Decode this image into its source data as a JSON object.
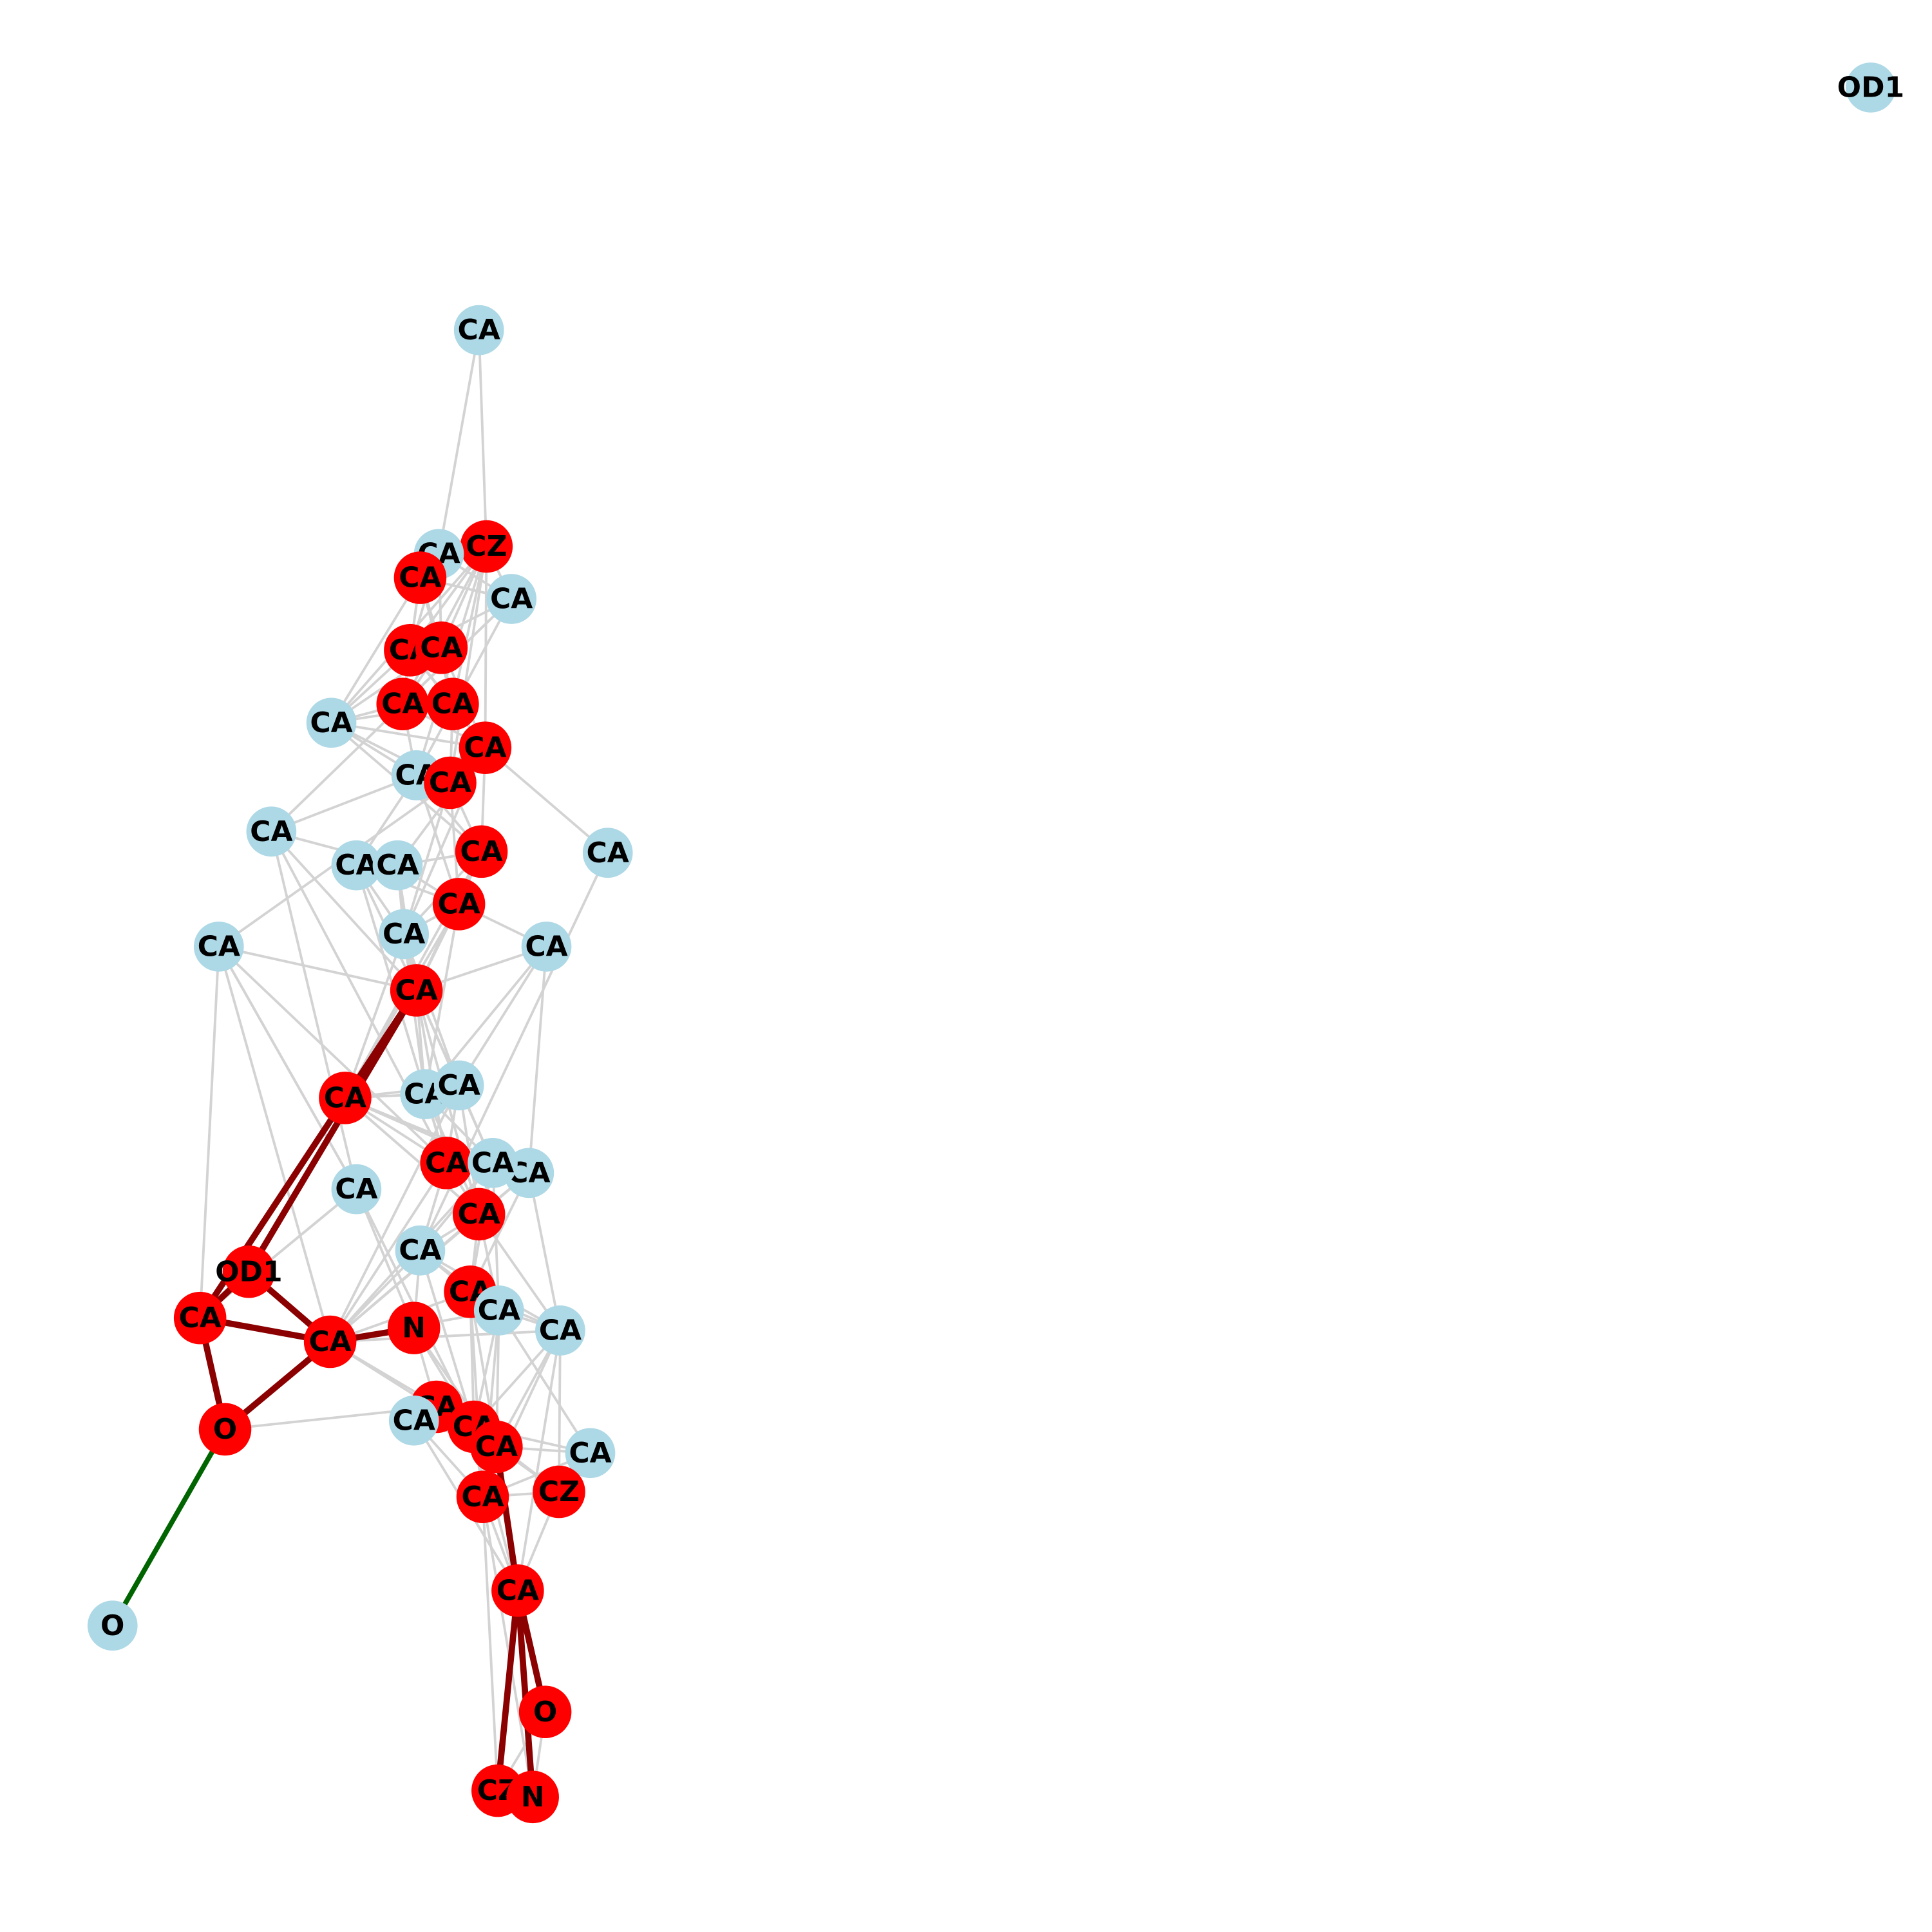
{
  "colors": {
    "background": "#ffffff",
    "node_default": "#add8e6",
    "node_highlight": "#ff0000",
    "edge_default": "#d3d3d3",
    "edge_highlight": "#8b0000",
    "edge_bridge": "#006400",
    "label": "#000000"
  },
  "nodes": [
    {
      "id": "n1",
      "label": "OD1",
      "highlight": false
    },
    {
      "id": "n2",
      "label": "CA",
      "highlight": false
    },
    {
      "id": "n3",
      "label": "CZ",
      "highlight": true
    },
    {
      "id": "n4",
      "label": "CA",
      "highlight": false
    },
    {
      "id": "n5",
      "label": "CA",
      "highlight": true
    },
    {
      "id": "n6",
      "label": "CA",
      "highlight": false
    },
    {
      "id": "n7",
      "label": "CA",
      "highlight": true
    },
    {
      "id": "n8",
      "label": "CA",
      "highlight": true
    },
    {
      "id": "n9",
      "label": "CA",
      "highlight": true
    },
    {
      "id": "n10",
      "label": "CA",
      "highlight": true
    },
    {
      "id": "n11",
      "label": "CA",
      "highlight": false
    },
    {
      "id": "n12",
      "label": "CA",
      "highlight": true
    },
    {
      "id": "n13",
      "label": "CA",
      "highlight": false
    },
    {
      "id": "n14",
      "label": "CA",
      "highlight": true
    },
    {
      "id": "n15",
      "label": "CA",
      "highlight": false
    },
    {
      "id": "n16",
      "label": "CA",
      "highlight": true
    },
    {
      "id": "n17",
      "label": "CA",
      "highlight": false
    },
    {
      "id": "n18",
      "label": "CA",
      "highlight": false
    },
    {
      "id": "n19",
      "label": "CA",
      "highlight": false
    },
    {
      "id": "n20",
      "label": "CA",
      "highlight": true
    },
    {
      "id": "n21",
      "label": "CA",
      "highlight": false
    },
    {
      "id": "n22",
      "label": "CA",
      "highlight": false
    },
    {
      "id": "n23",
      "label": "CA",
      "highlight": false
    },
    {
      "id": "n24",
      "label": "CA",
      "highlight": true
    },
    {
      "id": "n25",
      "label": "CA",
      "highlight": true
    },
    {
      "id": "n26",
      "label": "CA",
      "highlight": false
    },
    {
      "id": "n27",
      "label": "CA",
      "highlight": false
    },
    {
      "id": "n28",
      "label": "CA",
      "highlight": false
    },
    {
      "id": "n29",
      "label": "CA",
      "highlight": true
    },
    {
      "id": "n30",
      "label": "CA",
      "highlight": false
    },
    {
      "id": "n31",
      "label": "CA",
      "highlight": true
    },
    {
      "id": "n32",
      "label": "CA",
      "highlight": false
    },
    {
      "id": "n33",
      "label": "CA",
      "highlight": false
    },
    {
      "id": "n34",
      "label": "OD1",
      "highlight": true
    },
    {
      "id": "n35",
      "label": "CA",
      "highlight": true
    },
    {
      "id": "n36",
      "label": "CA",
      "highlight": true
    },
    {
      "id": "n37",
      "label": "CA",
      "highlight": true
    },
    {
      "id": "n38",
      "label": "CA",
      "highlight": false
    },
    {
      "id": "n39",
      "label": "N",
      "highlight": true
    },
    {
      "id": "n40",
      "label": "CA",
      "highlight": false
    },
    {
      "id": "n41",
      "label": "CA",
      "highlight": true
    },
    {
      "id": "n42",
      "label": "O",
      "highlight": true
    },
    {
      "id": "n43",
      "label": "CA",
      "highlight": false
    },
    {
      "id": "n44",
      "label": "CA",
      "highlight": true
    },
    {
      "id": "n45",
      "label": "CA",
      "highlight": true
    },
    {
      "id": "n46",
      "label": "CA",
      "highlight": false
    },
    {
      "id": "n47",
      "label": "CA",
      "highlight": true
    },
    {
      "id": "n48",
      "label": "CZ",
      "highlight": true
    },
    {
      "id": "n49",
      "label": "O",
      "highlight": false
    },
    {
      "id": "n50",
      "label": "CA",
      "highlight": true
    },
    {
      "id": "n51",
      "label": "O",
      "highlight": true
    },
    {
      "id": "n52",
      "label": "CZ",
      "highlight": true
    },
    {
      "id": "n53",
      "label": "N",
      "highlight": true
    }
  ],
  "edges": [
    [
      "n2",
      "n3"
    ],
    [
      "n2",
      "n4"
    ],
    [
      "n4",
      "n6"
    ],
    [
      "n4",
      "n7"
    ],
    [
      "n4",
      "n8"
    ],
    [
      "n3",
      "n5"
    ],
    [
      "n3",
      "n7"
    ],
    [
      "n3",
      "n8"
    ],
    [
      "n3",
      "n9"
    ],
    [
      "n3",
      "n10"
    ],
    [
      "n3",
      "n11"
    ],
    [
      "n3",
      "n12"
    ],
    [
      "n3",
      "n13"
    ],
    [
      "n3",
      "n6"
    ],
    [
      "n3",
      "n14"
    ],
    [
      "n5",
      "n7"
    ],
    [
      "n5",
      "n8"
    ],
    [
      "n5",
      "n9"
    ],
    [
      "n5",
      "n10"
    ],
    [
      "n5",
      "n11"
    ],
    [
      "n5",
      "n6"
    ],
    [
      "n6",
      "n9"
    ],
    [
      "n6",
      "n7"
    ],
    [
      "n6",
      "n17"
    ],
    [
      "n6",
      "n13"
    ],
    [
      "n7",
      "n8"
    ],
    [
      "n7",
      "n9"
    ],
    [
      "n7",
      "n10"
    ],
    [
      "n7",
      "n11"
    ],
    [
      "n7",
      "n12"
    ],
    [
      "n8",
      "n9"
    ],
    [
      "n8",
      "n10"
    ],
    [
      "n8",
      "n12"
    ],
    [
      "n8",
      "n11"
    ],
    [
      "n9",
      "n10"
    ],
    [
      "n9",
      "n11"
    ],
    [
      "n9",
      "n12"
    ],
    [
      "n9",
      "n13"
    ],
    [
      "n10",
      "n11"
    ],
    [
      "n10",
      "n12"
    ],
    [
      "n10",
      "n14"
    ],
    [
      "n11",
      "n12"
    ],
    [
      "n11",
      "n13"
    ],
    [
      "n11",
      "n16"
    ],
    [
      "n11",
      "n14"
    ],
    [
      "n12",
      "n15"
    ],
    [
      "n12",
      "n19"
    ],
    [
      "n12",
      "n13"
    ],
    [
      "n12",
      "n14"
    ],
    [
      "n12",
      "n16"
    ],
    [
      "n12",
      "n22"
    ],
    [
      "n13",
      "n14"
    ],
    [
      "n13",
      "n17"
    ],
    [
      "n13",
      "n18"
    ],
    [
      "n13",
      "n20"
    ],
    [
      "n13",
      "n16"
    ],
    [
      "n14",
      "n16"
    ],
    [
      "n14",
      "n20"
    ],
    [
      "n14",
      "n22"
    ],
    [
      "n14",
      "n21"
    ],
    [
      "n15",
      "n33"
    ],
    [
      "n16",
      "n19"
    ],
    [
      "n16",
      "n22"
    ],
    [
      "n16",
      "n25"
    ],
    [
      "n16",
      "n24"
    ],
    [
      "n16",
      "n20"
    ],
    [
      "n17",
      "n19"
    ],
    [
      "n17",
      "n24"
    ],
    [
      "n17",
      "n29"
    ],
    [
      "n17",
      "n32"
    ],
    [
      "n18",
      "n20"
    ],
    [
      "n18",
      "n22"
    ],
    [
      "n18",
      "n24"
    ],
    [
      "n18",
      "n29"
    ],
    [
      "n19",
      "n20"
    ],
    [
      "n19",
      "n22"
    ],
    [
      "n19",
      "n24"
    ],
    [
      "n20",
      "n22"
    ],
    [
      "n20",
      "n23"
    ],
    [
      "n20",
      "n24"
    ],
    [
      "n20",
      "n26"
    ],
    [
      "n20",
      "n25"
    ],
    [
      "n21",
      "n24"
    ],
    [
      "n21",
      "n29"
    ],
    [
      "n21",
      "n32"
    ],
    [
      "n21",
      "n36"
    ],
    [
      "n22",
      "n24"
    ],
    [
      "n22",
      "n26"
    ],
    [
      "n22",
      "n27"
    ],
    [
      "n22",
      "n25"
    ],
    [
      "n23",
      "n24"
    ],
    [
      "n23",
      "n26"
    ],
    [
      "n23",
      "n27"
    ],
    [
      "n23",
      "n28"
    ],
    [
      "n24",
      "n26"
    ],
    [
      "n24",
      "n27"
    ],
    [
      "n24",
      "n31"
    ],
    [
      "n24",
      "n29"
    ],
    [
      "n24",
      "n30"
    ],
    [
      "n25",
      "n26"
    ],
    [
      "n25",
      "n27"
    ],
    [
      "n25",
      "n28"
    ],
    [
      "n25",
      "n29"
    ],
    [
      "n25",
      "n30"
    ],
    [
      "n25",
      "n31"
    ],
    [
      "n26",
      "n27"
    ],
    [
      "n26",
      "n29"
    ],
    [
      "n26",
      "n30"
    ],
    [
      "n26",
      "n31"
    ],
    [
      "n27",
      "n29"
    ],
    [
      "n27",
      "n30"
    ],
    [
      "n27",
      "n31"
    ],
    [
      "n27",
      "n36"
    ],
    [
      "n28",
      "n31"
    ],
    [
      "n28",
      "n36"
    ],
    [
      "n28",
      "n37"
    ],
    [
      "n28",
      "n40"
    ],
    [
      "n29",
      "n30"
    ],
    [
      "n29",
      "n31"
    ],
    [
      "n29",
      "n33"
    ],
    [
      "n29",
      "n36"
    ],
    [
      "n30",
      "n31"
    ],
    [
      "n30",
      "n33"
    ],
    [
      "n30",
      "n36"
    ],
    [
      "n30",
      "n37"
    ],
    [
      "n30",
      "n38"
    ],
    [
      "n31",
      "n33"
    ],
    [
      "n31",
      "n36"
    ],
    [
      "n31",
      "n37"
    ],
    [
      "n31",
      "n38"
    ],
    [
      "n31",
      "n40"
    ],
    [
      "n32",
      "n35"
    ],
    [
      "n32",
      "n44"
    ],
    [
      "n32",
      "n39"
    ],
    [
      "n33",
      "n36"
    ],
    [
      "n33",
      "n37"
    ],
    [
      "n33",
      "n38"
    ],
    [
      "n33",
      "n39"
    ],
    [
      "n33",
      "n44"
    ],
    [
      "n33",
      "n40"
    ],
    [
      "n36",
      "n37"
    ],
    [
      "n36",
      "n38"
    ],
    [
      "n36",
      "n40"
    ],
    [
      "n36",
      "n44"
    ],
    [
      "n36",
      "n45"
    ],
    [
      "n37",
      "n38"
    ],
    [
      "n37",
      "n40"
    ],
    [
      "n37",
      "n44"
    ],
    [
      "n37",
      "n45"
    ],
    [
      "n37",
      "n47"
    ],
    [
      "n38",
      "n40"
    ],
    [
      "n38",
      "n44"
    ],
    [
      "n38",
      "n45"
    ],
    [
      "n38",
      "n47"
    ],
    [
      "n38",
      "n46"
    ],
    [
      "n39",
      "n41"
    ],
    [
      "n39",
      "n45"
    ],
    [
      "n39",
      "n44"
    ],
    [
      "n40",
      "n44"
    ],
    [
      "n40",
      "n45"
    ],
    [
      "n40",
      "n47"
    ],
    [
      "n40",
      "n48"
    ],
    [
      "n40",
      "n50"
    ],
    [
      "n41",
      "n44"
    ],
    [
      "n41",
      "n45"
    ],
    [
      "n41",
      "n43"
    ],
    [
      "n43",
      "n45"
    ],
    [
      "n43",
      "n47"
    ],
    [
      "n43",
      "n50"
    ],
    [
      "n44",
      "n45"
    ],
    [
      "n44",
      "n46"
    ],
    [
      "n44",
      "n47"
    ],
    [
      "n44",
      "n48"
    ],
    [
      "n44",
      "n50"
    ],
    [
      "n45",
      "n46"
    ],
    [
      "n45",
      "n47"
    ],
    [
      "n45",
      "n48"
    ],
    [
      "n45",
      "n50"
    ],
    [
      "n46",
      "n47"
    ],
    [
      "n46",
      "n48"
    ],
    [
      "n47",
      "n50"
    ],
    [
      "n47",
      "n48"
    ],
    [
      "n47",
      "n52"
    ],
    [
      "n47",
      "n53"
    ],
    [
      "n48",
      "n50"
    ],
    [
      "n50",
      "n52"
    ],
    [
      "n50",
      "n53"
    ],
    [
      "n51",
      "n52"
    ],
    [
      "n51",
      "n53"
    ],
    [
      "n35",
      "n24"
    ],
    [
      "n35",
      "n42"
    ],
    [
      "n35",
      "n34"
    ],
    [
      "n35",
      "n21"
    ],
    [
      "n35",
      "n32"
    ],
    [
      "n41",
      "n42"
    ],
    [
      "n24",
      "n34"
    ],
    [
      "n32",
      "n21"
    ],
    [
      "n31",
      "n25"
    ]
  ],
  "highlight_edges": [
    [
      "n24",
      "n34"
    ],
    [
      "n24",
      "n35"
    ],
    [
      "n34",
      "n35"
    ],
    [
      "n34",
      "n36"
    ],
    [
      "n35",
      "n36"
    ],
    [
      "n35",
      "n42"
    ],
    [
      "n36",
      "n39"
    ],
    [
      "n36",
      "n42"
    ],
    [
      "n50",
      "n51"
    ],
    [
      "n50",
      "n52"
    ],
    [
      "n50",
      "n53"
    ],
    [
      "n45",
      "n50"
    ]
  ],
  "bridge_edges": [
    [
      "n42",
      "n49"
    ]
  ]
}
